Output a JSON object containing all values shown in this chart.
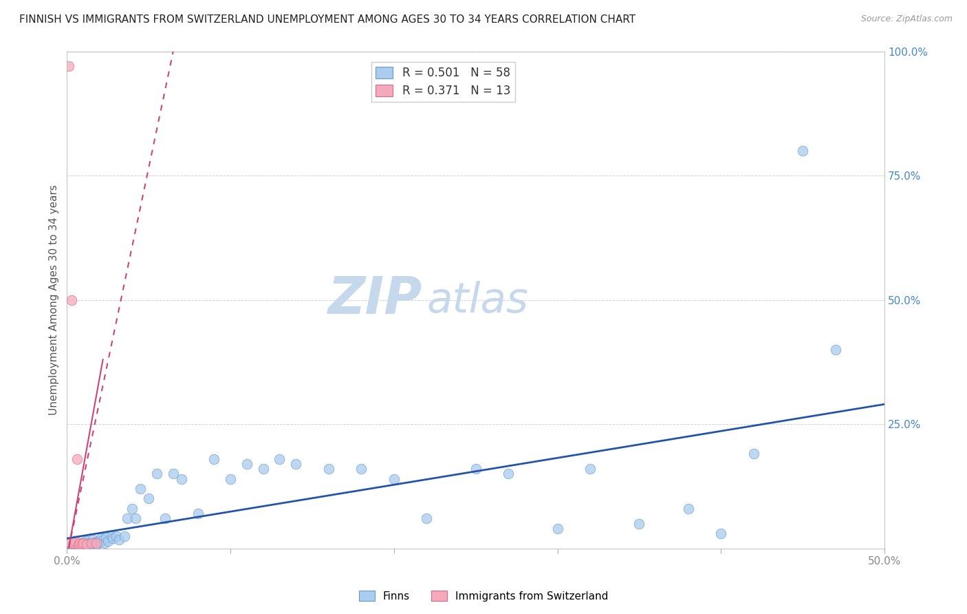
{
  "title": "FINNISH VS IMMIGRANTS FROM SWITZERLAND UNEMPLOYMENT AMONG AGES 30 TO 34 YEARS CORRELATION CHART",
  "source": "Source: ZipAtlas.com",
  "ylabel": "Unemployment Among Ages 30 to 34 years",
  "xlim": [
    0.0,
    0.5
  ],
  "ylim": [
    0.0,
    1.0
  ],
  "xticks": [
    0.0,
    0.1,
    0.2,
    0.3,
    0.4,
    0.5
  ],
  "yticks": [
    0.0,
    0.25,
    0.5,
    0.75,
    1.0
  ],
  "xticklabels": [
    "0.0%",
    "",
    "",
    "",
    "",
    "50.0%"
  ],
  "right_yticklabels": [
    "",
    "25.0%",
    "50.0%",
    "75.0%",
    "100.0%"
  ],
  "finns_color": "#aaccee",
  "swiss_color": "#f5aabb",
  "finns_edge_color": "#6699cc",
  "swiss_edge_color": "#dd6688",
  "finns_line_color": "#2255aa",
  "swiss_line_color": "#cc4477",
  "watermark_zip_color": "#c5d8ec",
  "watermark_atlas_color": "#c5d8ec",
  "background_color": "#ffffff",
  "title_fontsize": 11,
  "axis_label_color": "#555555",
  "tick_color_right": "#4488cc",
  "tick_color_bottom": "#888888",
  "legend_color_r": "#2255aa",
  "legend_color_n": "#cc4477",
  "finns_x": [
    0.003,
    0.004,
    0.005,
    0.006,
    0.007,
    0.008,
    0.009,
    0.01,
    0.011,
    0.012,
    0.013,
    0.014,
    0.015,
    0.016,
    0.017,
    0.018,
    0.019,
    0.02,
    0.021,
    0.022,
    0.023,
    0.024,
    0.025,
    0.027,
    0.028,
    0.03,
    0.032,
    0.035,
    0.037,
    0.04,
    0.042,
    0.045,
    0.05,
    0.055,
    0.06,
    0.065,
    0.07,
    0.08,
    0.09,
    0.1,
    0.11,
    0.12,
    0.13,
    0.14,
    0.16,
    0.18,
    0.2,
    0.22,
    0.25,
    0.27,
    0.3,
    0.32,
    0.35,
    0.38,
    0.4,
    0.42,
    0.45,
    0.47
  ],
  "finns_y": [
    0.005,
    0.008,
    0.01,
    0.005,
    0.008,
    0.003,
    0.006,
    0.012,
    0.008,
    0.015,
    0.01,
    0.007,
    0.005,
    0.018,
    0.012,
    0.008,
    0.015,
    0.012,
    0.02,
    0.018,
    0.01,
    0.022,
    0.015,
    0.025,
    0.02,
    0.025,
    0.018,
    0.025,
    0.06,
    0.08,
    0.06,
    0.12,
    0.1,
    0.15,
    0.06,
    0.15,
    0.14,
    0.07,
    0.18,
    0.14,
    0.17,
    0.16,
    0.18,
    0.17,
    0.16,
    0.16,
    0.14,
    0.06,
    0.16,
    0.15,
    0.04,
    0.16,
    0.05,
    0.08,
    0.03,
    0.19,
    0.8,
    0.4
  ],
  "swiss_x": [
    0.001,
    0.002,
    0.003,
    0.004,
    0.005,
    0.006,
    0.007,
    0.008,
    0.009,
    0.01,
    0.012,
    0.015,
    0.018
  ],
  "swiss_y": [
    0.97,
    0.01,
    0.5,
    0.01,
    0.015,
    0.18,
    0.008,
    0.01,
    0.008,
    0.01,
    0.008,
    0.01,
    0.01
  ],
  "finns_trend": [
    0.0,
    0.5,
    0.02,
    0.29
  ],
  "swiss_trend": [
    0.001,
    0.065,
    0.0,
    1.0
  ]
}
